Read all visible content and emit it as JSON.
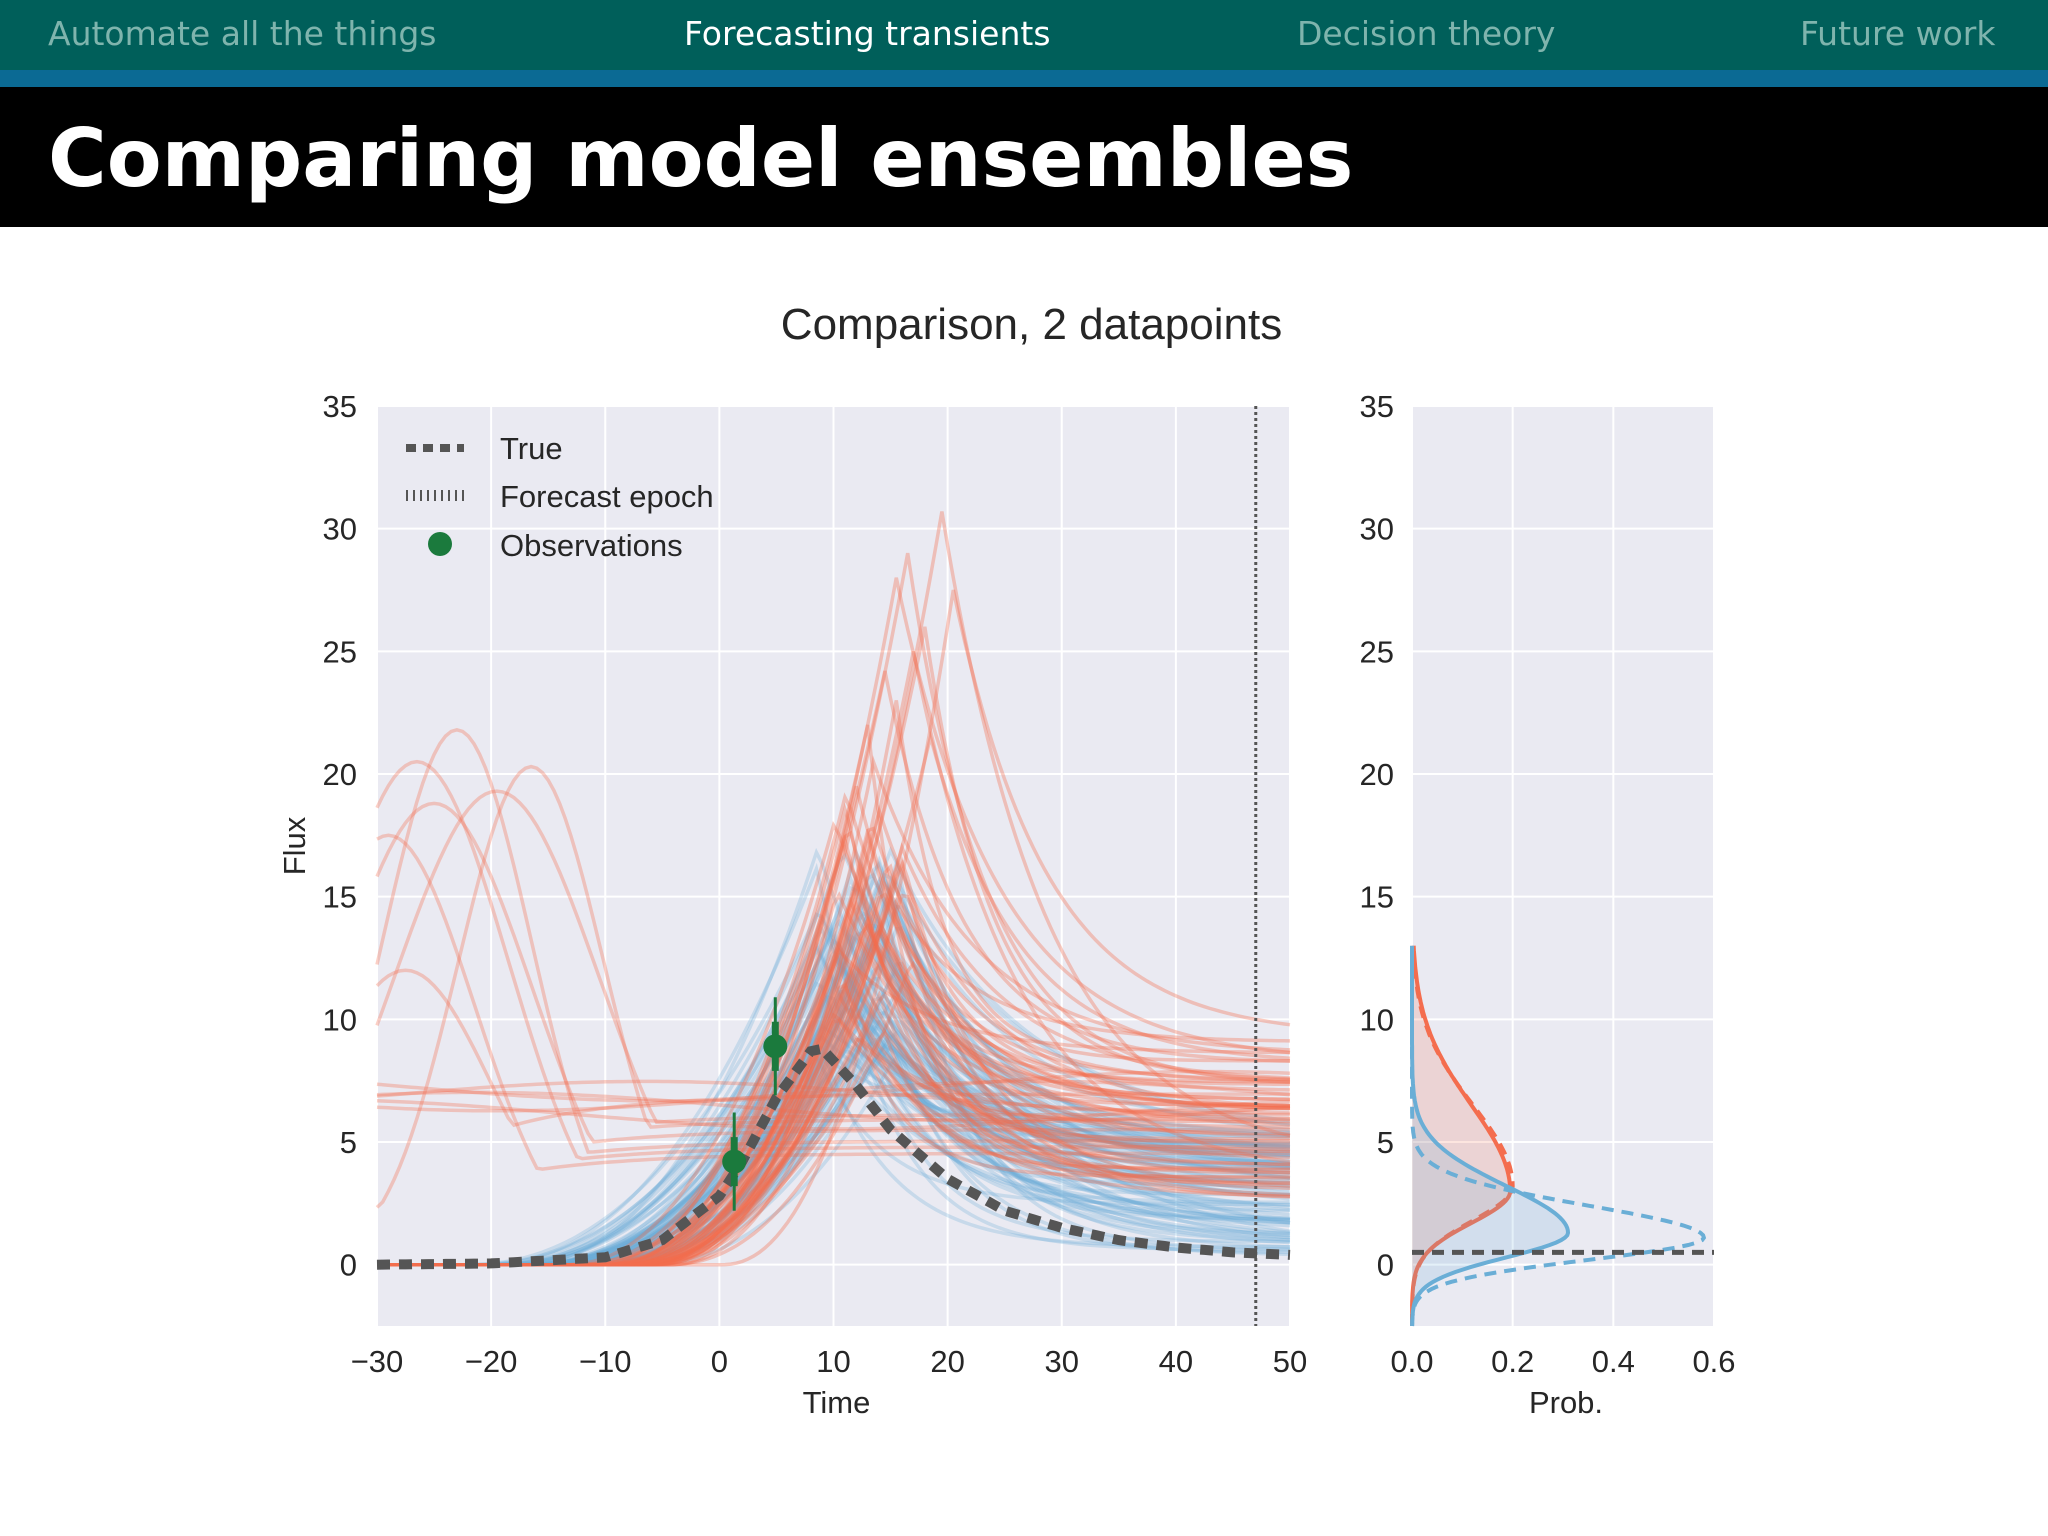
{
  "nav": {
    "items": [
      {
        "label": "Automate all the things",
        "active": false
      },
      {
        "label": "Forecasting transients",
        "active": true
      },
      {
        "label": "Decision theory",
        "active": false
      },
      {
        "label": "Future work",
        "active": false
      }
    ]
  },
  "slide": {
    "title": "Comparing model ensembles"
  },
  "colors": {
    "nav_bg": "#005f5a",
    "nav_stripe": "#0b6a94",
    "title_bg": "#000000",
    "plot_bg": "#eaeaf2",
    "red_ensemble": "#f46d4e",
    "blue_ensemble": "#6aaed6",
    "true_curve": "#555555",
    "observations": "#1b7a3d"
  },
  "chart_data": [
    {
      "type": "line",
      "title": "Comparison, 2 datapoints",
      "xlabel": "Time",
      "ylabel": "Flux",
      "xlim": [
        -30,
        50
      ],
      "ylim": [
        -2.5,
        35
      ],
      "xticks": [
        -30,
        -20,
        -10,
        0,
        10,
        20,
        30,
        40,
        50
      ],
      "yticks": [
        0,
        5,
        10,
        15,
        20,
        25,
        30,
        35
      ],
      "xtick_labels": [
        "−30",
        "−20",
        "−10",
        "0",
        "10",
        "20",
        "30",
        "40",
        "50"
      ],
      "grid": true,
      "legend": {
        "placement": "top-left",
        "entries": [
          {
            "label": "True",
            "style": "thick-dashed",
            "color": "#555555"
          },
          {
            "label": "Forecast epoch",
            "style": "dotted-vertical",
            "color": "#555555"
          },
          {
            "label": "Observations",
            "style": "marker",
            "color": "#1b7a3d"
          }
        ]
      },
      "forecast_epoch": 47,
      "true_curve": {
        "x": [
          -30,
          -20,
          -10,
          -5,
          0,
          2,
          5,
          8,
          9,
          12,
          15,
          20,
          25,
          30,
          35,
          40,
          45,
          50
        ],
        "y": [
          0.0,
          0.05,
          0.3,
          1.0,
          2.8,
          4.2,
          6.8,
          8.7,
          8.8,
          7.3,
          5.5,
          3.5,
          2.2,
          1.5,
          1.0,
          0.7,
          0.5,
          0.4
        ]
      },
      "observations": [
        {
          "x": 1.3,
          "y": 4.2,
          "yerr": 2.0
        },
        {
          "x": 4.9,
          "y": 8.9,
          "yerr": 2.0
        }
      ],
      "ensembles": {
        "red": {
          "early_peaks": [
            [
              -26.5,
              20.5
            ],
            [
              -23.0,
              21.8
            ],
            [
              -25.0,
              18.8
            ],
            [
              -19.5,
              19.3
            ],
            [
              -16.5,
              20.3
            ],
            [
              -29.0,
              17.5
            ],
            [
              -27.5,
              12.0
            ]
          ],
          "main_peaks": [
            [
              19.5,
              30.7
            ],
            [
              16.5,
              29.0
            ],
            [
              15.5,
              28.0
            ],
            [
              20.5,
              27.5
            ],
            [
              18.0,
              26.0
            ],
            [
              17.0,
              25.0
            ],
            [
              14.5,
              24.2
            ],
            [
              15.5,
              23.0
            ],
            [
              13.0,
              22.0
            ],
            [
              18.5,
              21.5
            ],
            [
              13.5,
              20.5
            ],
            [
              12.0,
              19.5
            ],
            [
              14.0,
              18.5
            ],
            [
              13.0,
              17.5
            ],
            [
              16.0,
              17.0
            ],
            [
              12.5,
              16.2
            ],
            [
              14.5,
              15.5
            ],
            [
              11.5,
              14.8
            ],
            [
              13.0,
              14.0
            ],
            [
              15.0,
              13.5
            ],
            [
              10.5,
              12.8
            ],
            [
              12.0,
              12.2
            ],
            [
              11.0,
              11.5
            ],
            [
              14.0,
              11.0
            ]
          ],
          "late_levels_range": [
            2.5,
            9.5
          ]
        },
        "blue": {
          "peak_x_range": [
            8.5,
            16
          ],
          "peak_y_range": [
            8.5,
            17
          ],
          "late_levels_range": [
            0.3,
            5.5
          ]
        }
      }
    },
    {
      "type": "line",
      "title": "",
      "xlabel": "Prob.",
      "ylabel": "",
      "xlim": [
        0,
        0.6
      ],
      "ylim": [
        -2.5,
        35
      ],
      "xticks": [
        0.0,
        0.2,
        0.4,
        0.6
      ],
      "xtick_labels": [
        "0.0",
        "0.2",
        "0.4",
        "0.6"
      ],
      "yticks": [
        0,
        5,
        10,
        15,
        20,
        25,
        30,
        35
      ],
      "grid": true,
      "true_value": 0.5,
      "series": [
        {
          "color": "#f46d4e",
          "style": "solid",
          "filled": true,
          "peak": 3.0,
          "peak_prob": 0.195,
          "sigma_lo": 1.3,
          "sigma_hi": 3.5
        },
        {
          "color": "#f46d4e",
          "style": "dashed",
          "filled": false,
          "peak": 3.2,
          "peak_prob": 0.2,
          "sigma_lo": 1.4,
          "sigma_hi": 3.3
        },
        {
          "color": "#6aaed6",
          "style": "solid",
          "filled": true,
          "peak": 1.3,
          "peak_prob": 0.31,
          "sigma_lo": 1.0,
          "sigma_hi": 1.9
        },
        {
          "color": "#6aaed6",
          "style": "dashed",
          "filled": false,
          "peak": 1.1,
          "peak_prob": 0.58,
          "sigma_lo": 0.9,
          "sigma_hi": 1.3
        }
      ]
    }
  ]
}
